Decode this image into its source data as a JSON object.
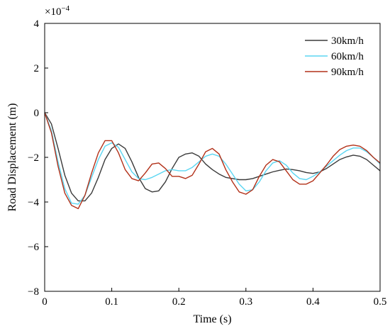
{
  "chart_data": {
    "type": "line",
    "xlabel": "Time (s)",
    "ylabel": "Road Displacement (m)",
    "y_multiplier": "×10",
    "y_multiplier_exp": "−4",
    "xlim": [
      0,
      0.5
    ],
    "ylim": [
      -8,
      4
    ],
    "x_ticks": [
      0,
      0.1,
      0.2,
      0.3,
      0.4,
      0.5
    ],
    "x_tick_labels": [
      "0",
      "0.1",
      "0.2",
      "0.3",
      "0.4",
      "0.5"
    ],
    "y_ticks": [
      -8,
      -6,
      -4,
      -2,
      0,
      2,
      4
    ],
    "y_tick_labels": [
      "−8",
      "−6",
      "−4",
      "−2",
      "0",
      "2",
      "4"
    ],
    "grid": false,
    "legend_position": "top-right",
    "series": [
      {
        "name": "30km/h",
        "color": "#3a3a3a",
        "x": [
          0,
          0.01,
          0.02,
          0.03,
          0.04,
          0.05,
          0.06,
          0.07,
          0.08,
          0.09,
          0.1,
          0.11,
          0.12,
          0.13,
          0.14,
          0.15,
          0.16,
          0.17,
          0.18,
          0.19,
          0.2,
          0.21,
          0.22,
          0.23,
          0.24,
          0.25,
          0.26,
          0.27,
          0.28,
          0.29,
          0.3,
          0.31,
          0.32,
          0.33,
          0.34,
          0.35,
          0.36,
          0.37,
          0.38,
          0.39,
          0.4,
          0.41,
          0.42,
          0.43,
          0.44,
          0.45,
          0.46,
          0.47,
          0.48,
          0.49,
          0.5
        ],
        "values": [
          0,
          -0.5,
          -1.6,
          -2.8,
          -3.6,
          -3.95,
          -3.95,
          -3.6,
          -2.9,
          -2.1,
          -1.6,
          -1.4,
          -1.6,
          -2.2,
          -2.9,
          -3.4,
          -3.55,
          -3.5,
          -3.1,
          -2.5,
          -2.0,
          -1.85,
          -1.8,
          -1.95,
          -2.3,
          -2.55,
          -2.75,
          -2.9,
          -2.95,
          -3.0,
          -3.0,
          -2.95,
          -2.85,
          -2.75,
          -2.65,
          -2.58,
          -2.52,
          -2.55,
          -2.6,
          -2.68,
          -2.72,
          -2.65,
          -2.5,
          -2.3,
          -2.1,
          -1.98,
          -1.9,
          -1.95,
          -2.1,
          -2.35,
          -2.6
        ]
      },
      {
        "name": "60km/h",
        "color": "#5bd6f2",
        "x": [
          0,
          0.01,
          0.02,
          0.03,
          0.04,
          0.05,
          0.06,
          0.07,
          0.08,
          0.09,
          0.1,
          0.11,
          0.12,
          0.13,
          0.14,
          0.15,
          0.16,
          0.17,
          0.18,
          0.19,
          0.2,
          0.21,
          0.22,
          0.23,
          0.24,
          0.25,
          0.26,
          0.27,
          0.28,
          0.29,
          0.3,
          0.31,
          0.32,
          0.33,
          0.34,
          0.35,
          0.36,
          0.37,
          0.38,
          0.39,
          0.4,
          0.41,
          0.42,
          0.43,
          0.44,
          0.45,
          0.46,
          0.47,
          0.48,
          0.49,
          0.5
        ],
        "values": [
          0,
          -0.8,
          -2.2,
          -3.4,
          -4.05,
          -4.1,
          -3.7,
          -2.9,
          -2.1,
          -1.5,
          -1.35,
          -1.55,
          -2.1,
          -2.65,
          -2.95,
          -3.0,
          -2.9,
          -2.75,
          -2.6,
          -2.55,
          -2.6,
          -2.6,
          -2.45,
          -2.2,
          -1.95,
          -1.85,
          -1.95,
          -2.3,
          -2.75,
          -3.2,
          -3.5,
          -3.45,
          -3.1,
          -2.6,
          -2.25,
          -2.15,
          -2.35,
          -2.7,
          -2.95,
          -3.0,
          -2.85,
          -2.65,
          -2.4,
          -2.15,
          -1.9,
          -1.7,
          -1.58,
          -1.58,
          -1.75,
          -2.0,
          -2.3
        ]
      },
      {
        "name": "90km/h",
        "color": "#b23018",
        "x": [
          0,
          0.01,
          0.02,
          0.03,
          0.04,
          0.05,
          0.06,
          0.07,
          0.08,
          0.09,
          0.1,
          0.11,
          0.12,
          0.13,
          0.14,
          0.15,
          0.16,
          0.17,
          0.18,
          0.19,
          0.2,
          0.21,
          0.22,
          0.23,
          0.24,
          0.25,
          0.26,
          0.27,
          0.28,
          0.29,
          0.3,
          0.31,
          0.32,
          0.33,
          0.34,
          0.35,
          0.36,
          0.37,
          0.38,
          0.39,
          0.4,
          0.41,
          0.42,
          0.43,
          0.44,
          0.45,
          0.46,
          0.47,
          0.48,
          0.49,
          0.5
        ],
        "values": [
          0,
          -0.9,
          -2.4,
          -3.6,
          -4.15,
          -4.3,
          -3.7,
          -2.7,
          -1.8,
          -1.25,
          -1.25,
          -1.8,
          -2.55,
          -2.95,
          -3.05,
          -2.7,
          -2.3,
          -2.25,
          -2.5,
          -2.85,
          -2.85,
          -2.95,
          -2.8,
          -2.3,
          -1.75,
          -1.6,
          -1.85,
          -2.55,
          -3.1,
          -3.55,
          -3.65,
          -3.45,
          -2.85,
          -2.35,
          -2.1,
          -2.2,
          -2.6,
          -3.0,
          -3.2,
          -3.2,
          -3.05,
          -2.7,
          -2.35,
          -1.95,
          -1.65,
          -1.5,
          -1.45,
          -1.5,
          -1.7,
          -2.0,
          -2.25
        ]
      }
    ]
  }
}
